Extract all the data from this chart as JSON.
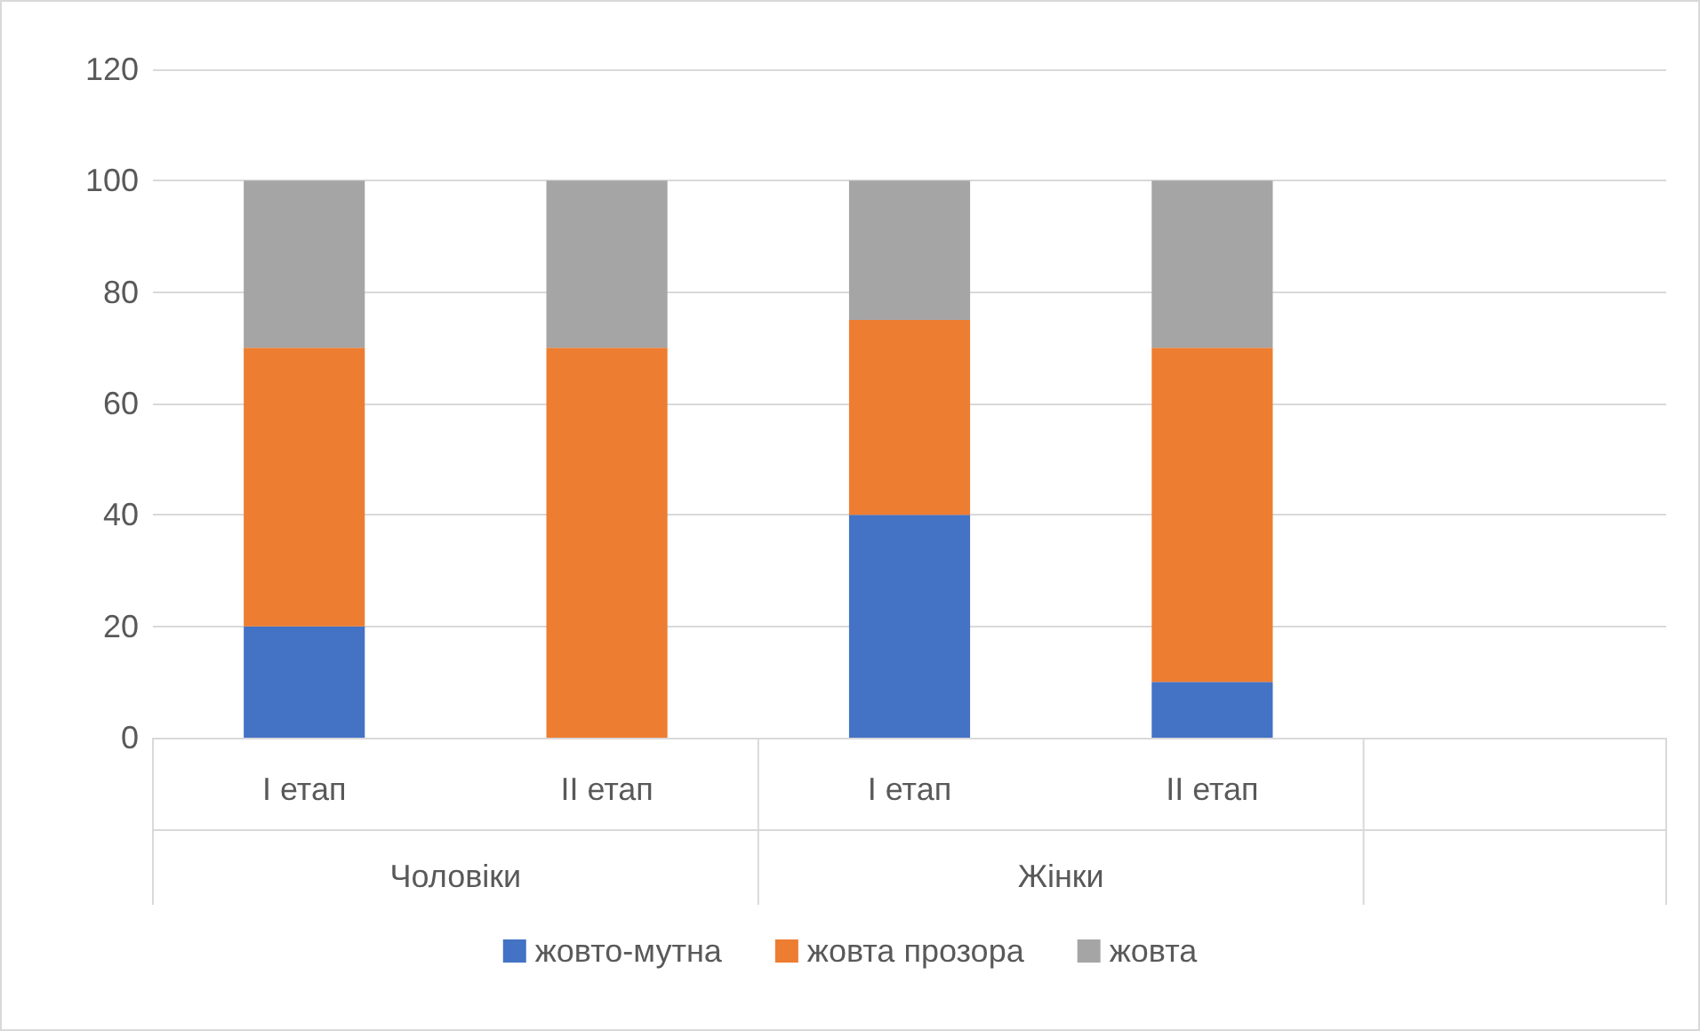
{
  "chart_data": {
    "type": "bar",
    "stacked": true,
    "categories": [
      "I етап",
      "II етап",
      "I етап",
      "II етап",
      null
    ],
    "annotations": [
      "Чоловіки",
      "Жінки"
    ],
    "series": [
      {
        "name": "жовто-мутна",
        "color": "#4472c4",
        "values": [
          20,
          0,
          40,
          10,
          null
        ]
      },
      {
        "name": "жовта прозора",
        "color": "#ed7d31",
        "values": [
          50,
          70,
          35,
          60,
          null
        ]
      },
      {
        "name": "жовта",
        "color": "#a5a5a5",
        "values": [
          30,
          30,
          25,
          30,
          null
        ]
      }
    ],
    "ylim": [
      0,
      120
    ],
    "yticks": [
      0,
      20,
      40,
      60,
      80,
      100,
      120
    ],
    "grid": "y",
    "legend": "bottom"
  }
}
